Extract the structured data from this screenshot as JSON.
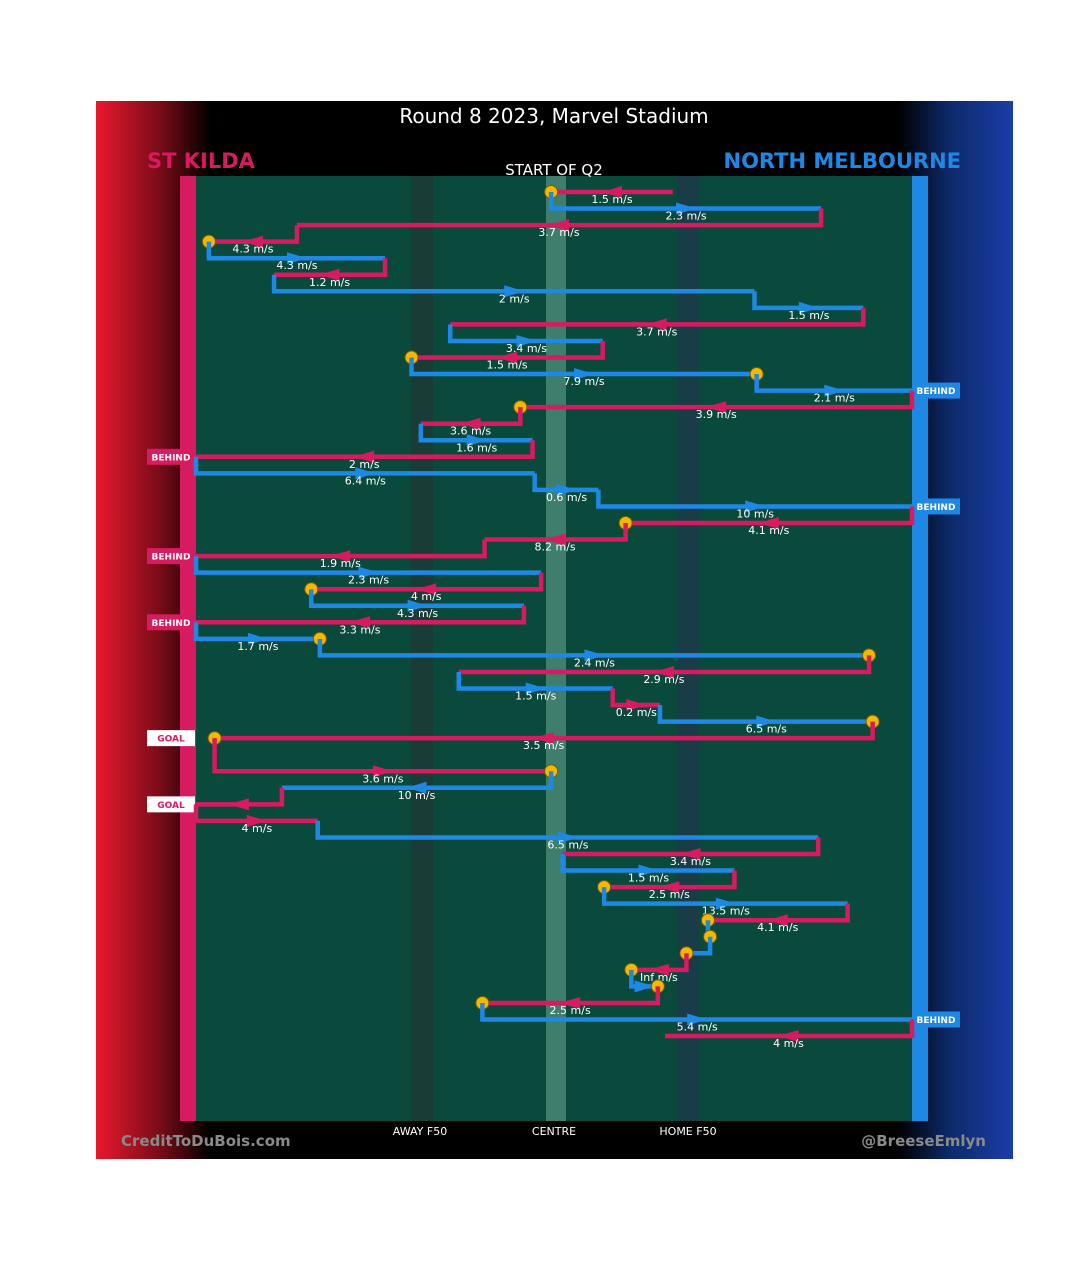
{
  "title": "Round 8 2023, Marvel Stadium",
  "subtitle": "START OF Q2",
  "teams": {
    "left": {
      "name": "ST KILDA",
      "color": "#d81b60"
    },
    "right": {
      "name": "NORTH MELBOURNE",
      "color": "#1e88e5"
    }
  },
  "axis_labels": {
    "away_f50": "AWAY F50",
    "centre": "CENTRE",
    "home_f50": "HOME F50"
  },
  "footer": {
    "left": "CreditToDuBois.com",
    "right": "@BreeseEmlyn"
  },
  "chart_data": {
    "type": "line",
    "x_axis": {
      "range": [
        0,
        100
      ],
      "labels": [
        "AWAY F50",
        "CENTRE",
        "HOME F50"
      ]
    },
    "colors": {
      "st_kilda": "#d81b60",
      "north_melbourne": "#1e88e5",
      "marker": "#f5b800"
    },
    "segments": [
      {
        "team": "st_kilda",
        "label": "1.5 m/s",
        "ex": 49.6,
        "row": 1.0,
        "ends": [
          "marker"
        ]
      },
      {
        "team": "north_melbourne",
        "label": "2.3 m/s",
        "ex": 87.3,
        "row": 2.0
      },
      {
        "team": "st_kilda",
        "label": "3.7 m/s",
        "ex": 14.1,
        "row": 3.0
      },
      {
        "team": "st_kilda",
        "label": "4.3 m/s",
        "ex": 1.8,
        "row": 4.0,
        "ends": [
          "marker"
        ]
      },
      {
        "team": "north_melbourne",
        "label": "4.3 m/s",
        "ex": 26.4,
        "row": 5.0
      },
      {
        "team": "st_kilda",
        "label": "1.2 m/s",
        "ex": 10.9,
        "row": 6.0
      },
      {
        "team": "north_melbourne",
        "label": "2 m/s",
        "ex": 78.0,
        "row": 7.0
      },
      {
        "team": "north_melbourne",
        "label": "1.5 m/s",
        "ex": 93.2,
        "row": 8.0
      },
      {
        "team": "st_kilda",
        "label": "3.7 m/s",
        "ex": 35.5,
        "row": 9.0
      },
      {
        "team": "north_melbourne",
        "label": "3.4 m/s",
        "ex": 56.8,
        "row": 10.0
      },
      {
        "team": "st_kilda",
        "label": "1.5 m/s",
        "ex": 30.1,
        "row": 11.0,
        "ends": [
          "marker"
        ]
      },
      {
        "team": "north_melbourne",
        "label": "7.9 m/s",
        "ex": 78.3,
        "row": 12.0,
        "ends": [
          "marker"
        ]
      },
      {
        "team": "north_melbourne",
        "label": "2.1 m/s",
        "ex": 100.0,
        "row": 13.0,
        "ends": [
          "BEHIND"
        ]
      },
      {
        "team": "st_kilda",
        "label": "3.9 m/s",
        "ex": 45.3,
        "row": 14.0,
        "ends": [
          "marker"
        ]
      },
      {
        "team": "st_kilda",
        "label": "3.6 m/s",
        "ex": 31.4,
        "row": 15.0
      },
      {
        "team": "north_melbourne",
        "label": "1.6 m/s",
        "ex": 47.0,
        "row": 16.0
      },
      {
        "team": "st_kilda",
        "label": "2 m/s",
        "ex": 0.0,
        "row": 17.0,
        "ends": [
          "BEHIND"
        ]
      },
      {
        "team": "north_melbourne",
        "label": "6.4 m/s",
        "ex": 47.3,
        "row": 18.0
      },
      {
        "team": "north_melbourne",
        "label": "0.6 m/s",
        "ex": 56.2,
        "row": 19.0
      },
      {
        "team": "north_melbourne",
        "label": "10 m/s",
        "ex": 100.0,
        "row": 20.0,
        "ends": [
          "BEHIND"
        ]
      },
      {
        "team": "st_kilda",
        "label": "4.1 m/s",
        "ex": 60.0,
        "row": 21.0,
        "ends": [
          "marker"
        ]
      },
      {
        "team": "st_kilda",
        "label": "8.2 m/s",
        "ex": 40.3,
        "row": 22.0
      },
      {
        "team": "st_kilda",
        "label": "1.9 m/s",
        "ex": 0.0,
        "row": 23.0,
        "ends": [
          "BEHIND"
        ]
      },
      {
        "team": "north_melbourne",
        "label": "2.3 m/s",
        "ex": 48.2,
        "row": 24.0
      },
      {
        "team": "st_kilda",
        "label": "4 m/s",
        "ex": 16.1,
        "row": 25.0,
        "ends": [
          "marker"
        ]
      },
      {
        "team": "north_melbourne",
        "label": "4.3 m/s",
        "ex": 45.8,
        "row": 26.0
      },
      {
        "team": "st_kilda",
        "label": "3.3 m/s",
        "ex": 0.0,
        "row": 27.0,
        "ends": [
          "BEHIND"
        ]
      },
      {
        "team": "north_melbourne",
        "label": "1.7 m/s",
        "ex": 17.3,
        "row": 28.0,
        "ends": [
          "marker"
        ]
      },
      {
        "team": "north_melbourne",
        "label": "2.4 m/s",
        "ex": 94.0,
        "row": 29.0,
        "ends": [
          "marker"
        ]
      },
      {
        "team": "st_kilda",
        "label": "2.9 m/s",
        "ex": 36.7,
        "row": 30.0
      },
      {
        "team": "north_melbourne",
        "label": "1.5 m/s",
        "ex": 58.2,
        "row": 31.0
      },
      {
        "team": "st_kilda",
        "label": "0.2 m/s",
        "ex": 64.8,
        "row": 32.0
      },
      {
        "team": "north_melbourne",
        "label": "6.5 m/s",
        "ex": 94.5,
        "row": 33.0,
        "ends": [
          "marker"
        ]
      },
      {
        "team": "st_kilda",
        "label": "3.5 m/s",
        "ex": 2.6,
        "row": 34.0,
        "ends": [
          "marker",
          "GOAL"
        ]
      },
      {
        "team": "st_kilda",
        "label": "3.6 m/s",
        "ex": 49.6,
        "row": 36.0,
        "ends": [
          "marker"
        ]
      },
      {
        "team": "north_melbourne",
        "label": "10 m/s",
        "ex": 12.0,
        "row": 37.0
      },
      {
        "team": "st_kilda",
        "label": "",
        "ex": 0.0,
        "row": 38.0,
        "ends": [
          "GOAL"
        ]
      },
      {
        "team": "st_kilda",
        "label": "4 m/s",
        "ex": 17.0,
        "row": 39.0
      },
      {
        "team": "north_melbourne",
        "label": "6.5 m/s",
        "ex": 86.9,
        "row": 40.0
      },
      {
        "team": "st_kilda",
        "label": "3.4 m/s",
        "ex": 51.2,
        "row": 41.0
      },
      {
        "team": "north_melbourne",
        "label": "1.5 m/s",
        "ex": 75.2,
        "row": 42.0
      },
      {
        "team": "st_kilda",
        "label": "2.5 m/s",
        "ex": 57.0,
        "row": 43.0,
        "ends": [
          "marker"
        ]
      },
      {
        "team": "north_melbourne",
        "label": "13.5 m/s",
        "ex": 91.0,
        "row": 44.0
      },
      {
        "team": "st_kilda",
        "label": "4.1 m/s",
        "ex": 71.5,
        "row": 45.0,
        "ends": [
          "marker"
        ]
      },
      {
        "team": "north_melbourne",
        "label": "",
        "ex": 71.8,
        "row": 46.0,
        "ends": [
          "marker"
        ]
      },
      {
        "team": "north_melbourne",
        "label": "",
        "ex": 68.5,
        "row": 47.0,
        "ends": [
          "marker"
        ]
      },
      {
        "team": "st_kilda",
        "label": "Inf m/s",
        "ex": 60.8,
        "row": 48.0,
        "ends": [
          "marker"
        ]
      },
      {
        "team": "north_melbourne",
        "label": "",
        "ex": 64.5,
        "row": 49.0,
        "ends": [
          "marker"
        ]
      },
      {
        "team": "st_kilda",
        "label": "2.5 m/s",
        "ex": 40.0,
        "row": 50.0,
        "ends": [
          "marker"
        ]
      },
      {
        "team": "north_melbourne",
        "label": "5.4 m/s",
        "ex": 100.0,
        "row": 51.0,
        "ends": [
          "BEHIND"
        ]
      },
      {
        "team": "st_kilda",
        "label": "4 m/s",
        "ex": 65.5,
        "row": 52.0
      }
    ]
  }
}
